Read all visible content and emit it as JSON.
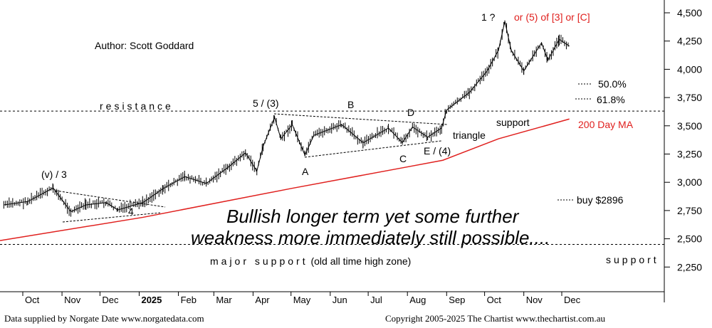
{
  "chart_data": {
    "type": "ohlc-line",
    "ylim": [
      2050,
      4640
    ],
    "yticks": [
      2250,
      2500,
      2750,
      3000,
      3250,
      3500,
      3750,
      4000,
      4250,
      4500
    ],
    "ytick_labels": [
      "2,250",
      "2,500",
      "2,750",
      "3,000",
      "3,250",
      "3,500",
      "3,750",
      "4,000",
      "4,250",
      "4,500"
    ],
    "xticks": [
      {
        "date": "2024-10-01",
        "label": "Oct"
      },
      {
        "date": "2024-11-01",
        "label": "Nov"
      },
      {
        "date": "2024-12-01",
        "label": "Dec"
      },
      {
        "date": "2025-01-01",
        "label": "2025",
        "bold": true
      },
      {
        "date": "2025-02-01",
        "label": "Feb"
      },
      {
        "date": "2025-03-01",
        "label": "Mar"
      },
      {
        "date": "2025-04-01",
        "label": "Apr"
      },
      {
        "date": "2025-05-01",
        "label": "May"
      },
      {
        "date": "2025-06-01",
        "label": "Jun"
      },
      {
        "date": "2025-07-01",
        "label": "Jul"
      },
      {
        "date": "2025-08-01",
        "label": "Aug"
      },
      {
        "date": "2025-09-01",
        "label": "Sep"
      },
      {
        "date": "2025-10-01",
        "label": "Oct"
      },
      {
        "date": "2025-11-01",
        "label": "Nov"
      },
      {
        "date": "2025-12-01",
        "label": "Dec"
      }
    ],
    "price": [
      [
        "2024-09-16",
        2800
      ],
      [
        "2024-10-05",
        2830
      ],
      [
        "2024-10-25",
        2950
      ],
      [
        "2024-11-08",
        2740
      ],
      [
        "2024-11-20",
        2800
      ],
      [
        "2024-12-06",
        2820
      ],
      [
        "2024-12-15",
        2755
      ],
      [
        "2025-01-04",
        2820
      ],
      [
        "2025-01-20",
        2945
      ],
      [
        "2025-02-06",
        3050
      ],
      [
        "2025-02-23",
        2990
      ],
      [
        "2025-03-12",
        3130
      ],
      [
        "2025-03-26",
        3260
      ],
      [
        "2025-04-04",
        3100
      ],
      [
        "2025-04-09",
        3320
      ],
      [
        "2025-04-18",
        3575
      ],
      [
        "2025-04-23",
        3385
      ],
      [
        "2025-05-02",
        3510
      ],
      [
        "2025-05-12",
        3240
      ],
      [
        "2025-05-19",
        3415
      ],
      [
        "2025-06-10",
        3510
      ],
      [
        "2025-06-27",
        3350
      ],
      [
        "2025-07-17",
        3480
      ],
      [
        "2025-07-28",
        3350
      ],
      [
        "2025-08-05",
        3490
      ],
      [
        "2025-08-17",
        3400
      ],
      [
        "2025-08-28",
        3480
      ],
      [
        "2025-09-01",
        3640
      ],
      [
        "2025-09-19",
        3795
      ],
      [
        "2025-10-03",
        3985
      ],
      [
        "2025-10-12",
        4170
      ],
      [
        "2025-10-17",
        4425
      ],
      [
        "2025-10-22",
        4170
      ],
      [
        "2025-11-01",
        3985
      ],
      [
        "2025-11-15",
        4235
      ],
      [
        "2025-11-20",
        4080
      ],
      [
        "2025-11-29",
        4265
      ],
      [
        "2025-12-07",
        4205
      ]
    ],
    "ma200": {
      "name": "200 Day MA",
      "color": "#e0201e",
      "points": [
        [
          "2024-09-13",
          2484
        ],
        [
          "2025-01-04",
          2690
        ],
        [
          "2025-05-01",
          2945
        ],
        [
          "2025-07-29",
          3130
        ],
        [
          "2025-08-29",
          3195
        ],
        [
          "2025-10-12",
          3385
        ],
        [
          "2025-12-07",
          3560
        ]
      ]
    },
    "hlines": {
      "resistance": 3630,
      "major_support": 2450
    },
    "annotations": {
      "author": "Author: Scott Goddard",
      "wave1": "1 ?",
      "alt": "or (5) of [3] or [C]",
      "fib50": "50.0%",
      "fib618": "61.8%",
      "resistance": "resistance",
      "w5": "5 / (3)",
      "B": "B",
      "D": "D",
      "A": "A",
      "C": "C",
      "triangle": "triangle",
      "support1": "support",
      "ma_label": "200 Day MA",
      "E": "E / (4)",
      "v3": "(v) / 3",
      "w4": "4",
      "buy": "buy $2896",
      "headline1": "Bullish longer term yet some further",
      "headline2": "weakness more immediately still possible....",
      "major_support": "major support",
      "major_support_note": "(old all time high zone)",
      "support2": "support"
    }
  },
  "footer": {
    "left": "Data supplied by Norgate Date www.norgatedata.com",
    "right": "Copyright 2005-2025 The Chartist www.thechartist.com.au"
  }
}
